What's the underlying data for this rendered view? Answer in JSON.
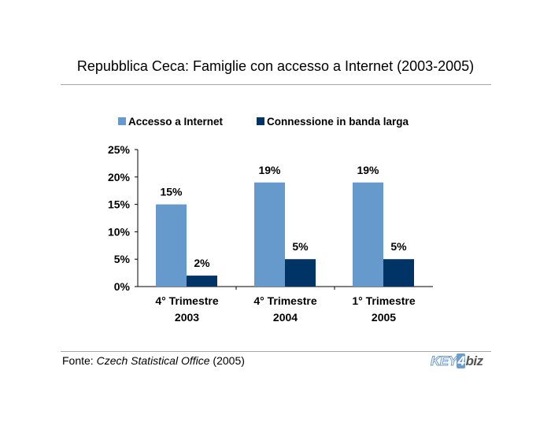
{
  "title": "Repubblica Ceca: Famiglie con accesso a Internet (2003-2005)",
  "footer": {
    "prefix": "Fonte: ",
    "source": "Czech Statistical Office",
    "suffix": " (2005)"
  },
  "logo": {
    "part1": "KEY",
    "part2": "4",
    "part3": "biz"
  },
  "colors": {
    "series1": "#6699cc",
    "series2": "#003366",
    "axis": "#000000",
    "rule": "#a6a6a6"
  },
  "chart_data": {
    "type": "bar",
    "categories": [
      [
        "4° Trimestre",
        "2003"
      ],
      [
        "4° Trimestre",
        "2004"
      ],
      [
        "1° Trimestre",
        "2005"
      ]
    ],
    "series": [
      {
        "name": "Accesso a Internet",
        "values": [
          15,
          19,
          19
        ],
        "labels": [
          "15%",
          "19%",
          "19%"
        ]
      },
      {
        "name": "Connessione in banda larga",
        "values": [
          2,
          5,
          5
        ],
        "labels": [
          "2%",
          "5%",
          "5%"
        ]
      }
    ],
    "ylim": [
      0,
      25
    ],
    "yticks": [
      0,
      5,
      10,
      15,
      20,
      25
    ],
    "ytick_labels": [
      "0%",
      "5%",
      "10%",
      "15%",
      "20%",
      "25%"
    ],
    "legend": "top",
    "grid": false,
    "xlabel": "",
    "ylabel": ""
  }
}
